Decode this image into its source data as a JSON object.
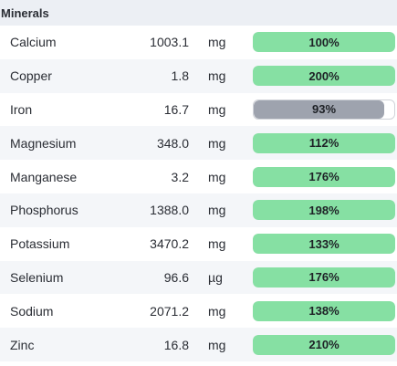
{
  "section": {
    "title": "Minerals"
  },
  "colors": {
    "met": "#86e0a3",
    "under": "#9ea3ae",
    "header_bg": "#eceff4"
  },
  "minerals": [
    {
      "name": "Calcium",
      "amount": "1003.1",
      "unit": "mg",
      "percent_label": "100%",
      "percent": 100
    },
    {
      "name": "Copper",
      "amount": "1.8",
      "unit": "mg",
      "percent_label": "200%",
      "percent": 200
    },
    {
      "name": "Iron",
      "amount": "16.7",
      "unit": "mg",
      "percent_label": "93%",
      "percent": 93
    },
    {
      "name": "Magnesium",
      "amount": "348.0",
      "unit": "mg",
      "percent_label": "112%",
      "percent": 112
    },
    {
      "name": "Manganese",
      "amount": "3.2",
      "unit": "mg",
      "percent_label": "176%",
      "percent": 176
    },
    {
      "name": "Phosphorus",
      "amount": "1388.0",
      "unit": "mg",
      "percent_label": "198%",
      "percent": 198
    },
    {
      "name": "Potassium",
      "amount": "3470.2",
      "unit": "mg",
      "percent_label": "133%",
      "percent": 133
    },
    {
      "name": "Selenium",
      "amount": "96.6",
      "unit": "µg",
      "percent_label": "176%",
      "percent": 176
    },
    {
      "name": "Sodium",
      "amount": "2071.2",
      "unit": "mg",
      "percent_label": "138%",
      "percent": 138
    },
    {
      "name": "Zinc",
      "amount": "16.8",
      "unit": "mg",
      "percent_label": "210%",
      "percent": 210
    }
  ]
}
